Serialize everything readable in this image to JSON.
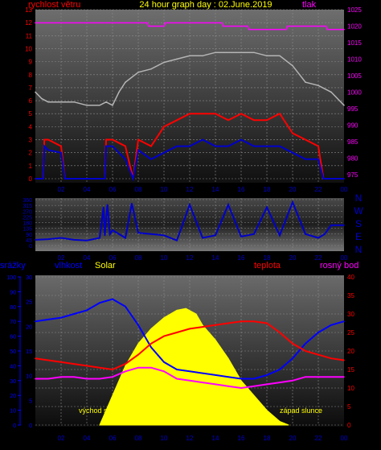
{
  "chart_data": [
    {
      "type": "line",
      "title": "24 hour graph day : 02.June.2019",
      "left_axis": {
        "label": "rychlost větru",
        "ticks": [
          0,
          1,
          2,
          3,
          4,
          5,
          6,
          7,
          8,
          9,
          10,
          11,
          12,
          13
        ],
        "ylim": [
          0,
          13
        ]
      },
      "right_axis": {
        "label": "tlak",
        "ticks": [
          975,
          980,
          985,
          990,
          995,
          1000,
          1005,
          1010,
          1015,
          1020,
          1025
        ],
        "ylim": [
          972.5,
          1025
        ]
      },
      "x_ticks": [
        "02",
        "04",
        "06",
        "08",
        "10",
        "12",
        "14",
        "16",
        "18",
        "20",
        "22",
        "00"
      ],
      "x_hours": [
        2,
        4,
        6,
        8,
        10,
        12,
        14,
        16,
        18,
        20,
        22,
        24
      ],
      "xlim": [
        0,
        24
      ],
      "series": [
        {
          "axis": "right",
          "color": "#ff00ff",
          "x": [
            0,
            8.7,
            8.8,
            10.0,
            10.1,
            14.5,
            14.6,
            16.5,
            16.6,
            19.5,
            19.6,
            22.6,
            22.7,
            24
          ],
          "values": [
            1021,
            1021,
            1020,
            1020,
            1021,
            1021,
            1020,
            1020,
            1019,
            1019,
            1020,
            1020,
            1019,
            1019
          ]
        },
        {
          "axis": "right",
          "color": "#b4b4b4",
          "x": [
            0,
            0.5,
            1,
            2,
            3,
            4,
            5,
            5.5,
            6,
            6.5,
            7,
            8,
            9,
            10,
            11,
            12,
            13,
            14,
            15,
            16,
            17,
            18,
            19,
            20,
            21,
            22,
            23,
            24
          ],
          "values": [
            1000,
            998,
            997,
            997,
            997,
            996,
            996,
            997,
            996,
            1000,
            1003,
            1006,
            1007,
            1009,
            1010,
            1011,
            1011,
            1012,
            1012,
            1012,
            1012,
            1011,
            1011,
            1008,
            1003,
            1002,
            1000,
            996
          ]
        },
        {
          "color": "#ff0000",
          "x": [
            0,
            0.6,
            0.7,
            1,
            2,
            2.3,
            3,
            4,
            5.4,
            5.5,
            6,
            7,
            7.6,
            8,
            9,
            10,
            11,
            12,
            13,
            14,
            15,
            16,
            17,
            18,
            19,
            20,
            21,
            22,
            22.4,
            22.6,
            24
          ],
          "values": [
            0,
            0,
            3,
            3,
            2.5,
            0,
            0,
            0,
            0,
            3,
            3,
            2.5,
            0,
            3,
            2.5,
            4,
            4.5,
            5,
            5,
            5,
            4.5,
            5,
            4.5,
            4.5,
            5,
            3.5,
            3,
            2.5,
            0,
            0,
            0
          ]
        },
        {
          "color": "#0000cc",
          "x": [
            0,
            0.6,
            0.7,
            1,
            2,
            2.3,
            3,
            4,
            5.4,
            5.5,
            6,
            7,
            7.6,
            8,
            9,
            10,
            11,
            12,
            13,
            14,
            15,
            16,
            17,
            18,
            19,
            20,
            21,
            22,
            22.4,
            22.6,
            24
          ],
          "values": [
            0,
            0,
            2.5,
            2.2,
            2,
            0,
            0,
            0,
            0,
            2.5,
            2.5,
            1.5,
            0,
            2.2,
            1.5,
            2,
            2.5,
            2.5,
            3,
            2.5,
            2.5,
            3,
            2.5,
            2.5,
            2.5,
            2,
            1.5,
            1.5,
            0,
            0,
            0
          ]
        }
      ]
    },
    {
      "type": "line",
      "left_axis": {
        "ticks": [
          0,
          45,
          90,
          135,
          180,
          225,
          270,
          315,
          360
        ],
        "ylim": [
          0,
          360
        ]
      },
      "direction_labels": [
        "N",
        "W",
        "S",
        "E",
        "N"
      ],
      "x_ticks": [
        "02",
        "04",
        "06",
        "08",
        "10",
        "12",
        "14",
        "16",
        "18",
        "20",
        "22",
        "00"
      ],
      "xlim": [
        0,
        24
      ],
      "series": [
        {
          "color": "#0000cc",
          "x": [
            0,
            1,
            2,
            3,
            4,
            5,
            5.3,
            5.4,
            5.6,
            5.8,
            6,
            7,
            7.5,
            8,
            9,
            10,
            11,
            12,
            13,
            14,
            15,
            16,
            17,
            18,
            19,
            20,
            21,
            22,
            22.5,
            23,
            24
          ],
          "values": [
            45,
            50,
            60,
            45,
            40,
            60,
            300,
            80,
            320,
            90,
            120,
            60,
            330,
            100,
            90,
            80,
            40,
            320,
            60,
            80,
            320,
            70,
            90,
            300,
            80,
            340,
            90,
            60,
            90,
            160,
            160
          ]
        }
      ]
    },
    {
      "type": "area",
      "legend": [
        {
          "text": "srážky",
          "color": "#0000ff"
        },
        {
          "text": "vlhkost",
          "color": "#0000ff"
        },
        {
          "text": "Solar",
          "color": "#ffff00"
        },
        {
          "text": "teplota",
          "color": "#ff0000"
        },
        {
          "text": "rosný bod",
          "color": "#ff00ff"
        }
      ],
      "axes": {
        "srazky": {
          "ticks": [
            0,
            10,
            20,
            30,
            40,
            50,
            60,
            70,
            80,
            90,
            100
          ],
          "ylim": [
            0,
            100
          ]
        },
        "vlhkost": {
          "ticks": [
            0,
            5,
            10,
            15,
            20,
            25,
            30
          ],
          "ylim": [
            0,
            30
          ]
        },
        "teplota": {
          "ticks": [
            0,
            5,
            10,
            15,
            20,
            25,
            30,
            35,
            40
          ],
          "ylim": [
            0,
            40
          ]
        }
      },
      "annotations": [
        {
          "text": "východ slunce",
          "x": 5.0
        },
        {
          "text": "západ slunce",
          "x": 19.7
        }
      ],
      "x_ticks": [
        "02",
        "04",
        "06",
        "08",
        "10",
        "12",
        "14",
        "16",
        "18",
        "20",
        "22",
        "00"
      ],
      "xlim": [
        0,
        24
      ],
      "series": [
        {
          "name": "vlhkost",
          "color": "#0000ff",
          "axis": "teplota",
          "x": [
            0,
            1,
            2,
            3,
            4,
            5,
            6,
            7,
            8,
            9,
            10,
            11,
            12,
            13,
            14,
            15,
            16,
            17,
            18,
            19,
            20,
            21,
            22,
            23,
            24
          ],
          "values": [
            28,
            28.5,
            29,
            30,
            31,
            33,
            34,
            32,
            27,
            21,
            17,
            15,
            14.5,
            14,
            13.5,
            13,
            12.5,
            12.5,
            13.5,
            15,
            18,
            22,
            25,
            27,
            28
          ]
        },
        {
          "name": "teplota",
          "color": "#ff0000",
          "axis": "teplota",
          "x": [
            0,
            1,
            2,
            3,
            4,
            5,
            6,
            7,
            8,
            9,
            10,
            11,
            12,
            13,
            14,
            15,
            16,
            17,
            18,
            19,
            20,
            21,
            22,
            23,
            24
          ],
          "values": [
            18,
            17.5,
            17,
            16.5,
            16,
            15.5,
            15,
            16.5,
            19,
            22,
            24,
            25,
            26,
            26.5,
            27,
            27.5,
            28,
            28,
            27.5,
            25,
            22,
            20,
            19,
            18,
            17.5
          ]
        },
        {
          "name": "rosný bod",
          "color": "#ff00ff",
          "axis": "teplota",
          "x": [
            0,
            1,
            2,
            3,
            4,
            5,
            6,
            7,
            8,
            9,
            10,
            11,
            12,
            13,
            14,
            15,
            16,
            17,
            18,
            19,
            20,
            21,
            22,
            23,
            24
          ],
          "values": [
            12.5,
            12.5,
            13,
            13,
            12.5,
            12.5,
            13,
            14.5,
            15.5,
            15.5,
            14.5,
            12.5,
            12,
            11.5,
            11,
            10.5,
            10,
            10.5,
            11,
            11.5,
            12,
            13,
            13,
            13,
            13
          ]
        },
        {
          "name": "Solar",
          "color": "#ffff00",
          "axis": "teplota",
          "x": [
            5,
            6,
            7,
            8,
            9,
            10,
            11,
            11.7,
            12.5,
            13,
            14,
            15,
            16,
            17,
            18,
            19,
            19.7
          ],
          "values": [
            0,
            8,
            16,
            22,
            26,
            29,
            31,
            31.5,
            30,
            27,
            23,
            18,
            12,
            8,
            4,
            1,
            0
          ]
        }
      ]
    }
  ]
}
